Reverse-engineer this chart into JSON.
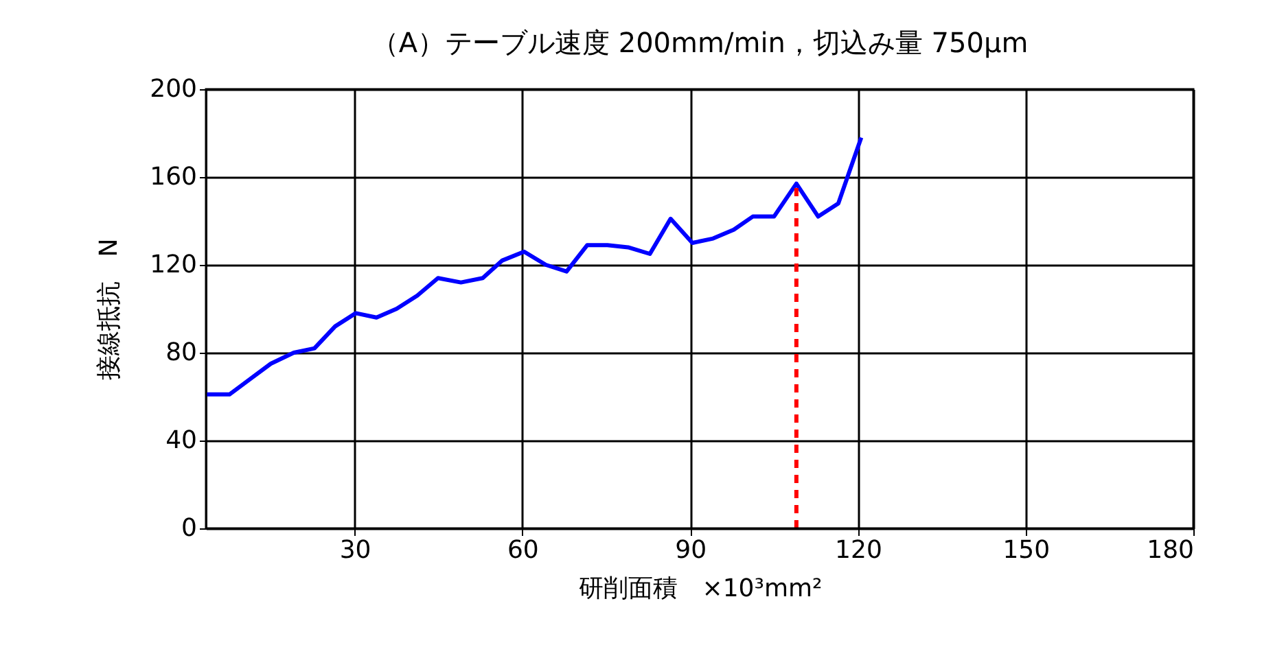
{
  "chart_data": {
    "type": "line",
    "title": "（A）テーブル速度 200mm/min，切込み量 750μm",
    "xlabel": "研削面積　×10³mm²",
    "ylabel": "接線抵抗　N",
    "x": [
      3.4,
      7.6,
      11.3,
      15.0,
      19.1,
      22.8,
      26.5,
      30.2,
      33.9,
      37.5,
      41.2,
      44.9,
      49.0,
      52.9,
      56.4,
      60.3,
      64.2,
      67.9,
      71.6,
      75.2,
      78.9,
      82.8,
      86.5,
      90.4,
      94.1,
      97.8,
      101.2,
      105.0,
      109.0,
      112.9,
      116.5,
      120.6
    ],
    "series": [
      {
        "color": "#0000ff",
        "values": [
          61,
          61,
          68,
          75,
          80,
          82,
          92,
          98,
          96,
          100,
          106,
          114,
          112,
          114,
          122,
          126,
          120,
          117,
          129,
          129,
          128,
          125,
          141,
          130,
          132,
          136,
          142,
          142,
          157,
          142,
          148,
          178
        ]
      }
    ],
    "xlim": [
      3.4,
      180
    ],
    "xticks": [
      30,
      60,
      90,
      120,
      150,
      180
    ],
    "ylim": [
      0,
      200
    ],
    "yticks": [
      0,
      40,
      80,
      120,
      160,
      200
    ],
    "grid": true,
    "marker": "none",
    "line_style": "solid",
    "ref_lines": [
      {
        "axis": "x",
        "value": 109.0,
        "label": null,
        "color": "#ff0000",
        "line_style": "dashed"
      }
    ]
  }
}
